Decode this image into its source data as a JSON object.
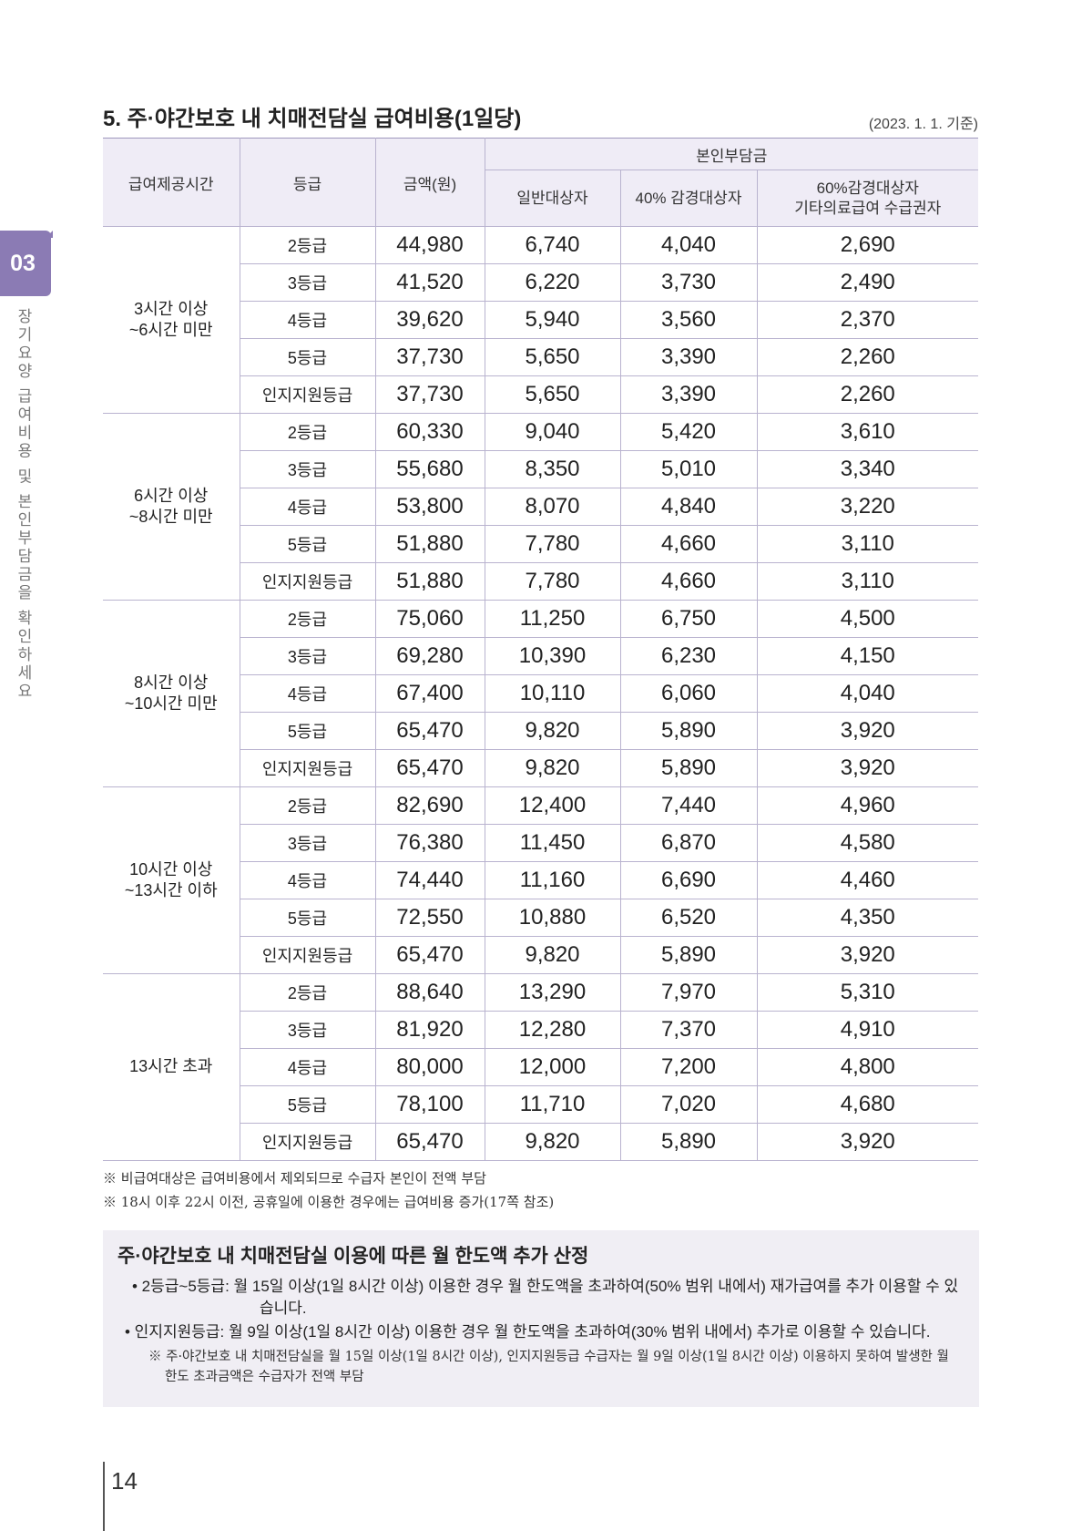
{
  "side": {
    "chapter": "03",
    "title": "장기요양 급여비용 및 본인부담금을 확인하세요"
  },
  "section_title": "5. 주·야간보호 내 치매전담실 급여비용(1일당)",
  "base_date": "(2023. 1. 1. 기준)",
  "table": {
    "headers": {
      "time": "급여제공시간",
      "grade": "등급",
      "amount": "금액(원)",
      "copay": "본인부담금",
      "general": "일반대상자",
      "reduced40": "40% 감경대상자",
      "reduced60_line1": "60%감경대상자",
      "reduced60_line2": "기타의료급여 수급권자"
    },
    "groups": [
      {
        "time_line1": "3시간 이상",
        "time_line2": "~6시간 미만",
        "rows": [
          {
            "grade": "2등급",
            "amount": "44,980",
            "general": "6,740",
            "r40": "4,040",
            "r60": "2,690"
          },
          {
            "grade": "3등급",
            "amount": "41,520",
            "general": "6,220",
            "r40": "3,730",
            "r60": "2,490"
          },
          {
            "grade": "4등급",
            "amount": "39,620",
            "general": "5,940",
            "r40": "3,560",
            "r60": "2,370"
          },
          {
            "grade": "5등급",
            "amount": "37,730",
            "general": "5,650",
            "r40": "3,390",
            "r60": "2,260"
          },
          {
            "grade": "인지지원등급",
            "amount": "37,730",
            "general": "5,650",
            "r40": "3,390",
            "r60": "2,260"
          }
        ]
      },
      {
        "time_line1": "6시간 이상",
        "time_line2": "~8시간 미만",
        "rows": [
          {
            "grade": "2등급",
            "amount": "60,330",
            "general": "9,040",
            "r40": "5,420",
            "r60": "3,610"
          },
          {
            "grade": "3등급",
            "amount": "55,680",
            "general": "8,350",
            "r40": "5,010",
            "r60": "3,340"
          },
          {
            "grade": "4등급",
            "amount": "53,800",
            "general": "8,070",
            "r40": "4,840",
            "r60": "3,220"
          },
          {
            "grade": "5등급",
            "amount": "51,880",
            "general": "7,780",
            "r40": "4,660",
            "r60": "3,110"
          },
          {
            "grade": "인지지원등급",
            "amount": "51,880",
            "general": "7,780",
            "r40": "4,660",
            "r60": "3,110"
          }
        ]
      },
      {
        "time_line1": "8시간 이상",
        "time_line2": "~10시간 미만",
        "rows": [
          {
            "grade": "2등급",
            "amount": "75,060",
            "general": "11,250",
            "r40": "6,750",
            "r60": "4,500"
          },
          {
            "grade": "3등급",
            "amount": "69,280",
            "general": "10,390",
            "r40": "6,230",
            "r60": "4,150"
          },
          {
            "grade": "4등급",
            "amount": "67,400",
            "general": "10,110",
            "r40": "6,060",
            "r60": "4,040"
          },
          {
            "grade": "5등급",
            "amount": "65,470",
            "general": "9,820",
            "r40": "5,890",
            "r60": "3,920"
          },
          {
            "grade": "인지지원등급",
            "amount": "65,470",
            "general": "9,820",
            "r40": "5,890",
            "r60": "3,920"
          }
        ]
      },
      {
        "time_line1": "10시간 이상",
        "time_line2": "~13시간 이하",
        "rows": [
          {
            "grade": "2등급",
            "amount": "82,690",
            "general": "12,400",
            "r40": "7,440",
            "r60": "4,960"
          },
          {
            "grade": "3등급",
            "amount": "76,380",
            "general": "11,450",
            "r40": "6,870",
            "r60": "4,580"
          },
          {
            "grade": "4등급",
            "amount": "74,440",
            "general": "11,160",
            "r40": "6,690",
            "r60": "4,460"
          },
          {
            "grade": "5등급",
            "amount": "72,550",
            "general": "10,880",
            "r40": "6,520",
            "r60": "4,350"
          },
          {
            "grade": "인지지원등급",
            "amount": "65,470",
            "general": "9,820",
            "r40": "5,890",
            "r60": "3,920"
          }
        ]
      },
      {
        "time_line1": "13시간 초과",
        "time_line2": "",
        "rows": [
          {
            "grade": "2등급",
            "amount": "88,640",
            "general": "13,290",
            "r40": "7,970",
            "r60": "5,310"
          },
          {
            "grade": "3등급",
            "amount": "81,920",
            "general": "12,280",
            "r40": "7,370",
            "r60": "4,910"
          },
          {
            "grade": "4등급",
            "amount": "80,000",
            "general": "12,000",
            "r40": "7,200",
            "r60": "4,800"
          },
          {
            "grade": "5등급",
            "amount": "78,100",
            "general": "11,710",
            "r40": "7,020",
            "r60": "4,680"
          },
          {
            "grade": "인지지원등급",
            "amount": "65,470",
            "general": "9,820",
            "r40": "5,890",
            "r60": "3,920"
          }
        ]
      }
    ]
  },
  "notes": [
    "※ 비급여대상은 급여비용에서 제외되므로 수급자 본인이 전액 부담",
    "※ 18시 이후 22시 이전, 공휴일에 이용한 경우에는 급여비용 증가(17쪽 참조)"
  ],
  "info": {
    "title": "주·야간보호 내 치매전담실 이용에 따른 월 한도액 추가 산정",
    "bullet1": "• 2등급~5등급: 월 15일 이상(1일 8시간 이상) 이용한 경우 월 한도액을 초과하여(50% 범위 내에서) 재가급여를 추가 이용할 수 있습니다.",
    "bullet2": "• 인지지원등급: 월 9일 이상(1일 8시간 이상) 이용한 경우 월 한도액을 초과하여(30% 범위 내에서) 추가로 이용할 수 있습니다.",
    "sub": "※ 주·야간보호 내 치매전담실을 월 15일 이상(1일 8시간 이상), 인지지원등급 수급자는 월 9일 이상(1일 8시간 이상) 이용하지 못하여 발생한 월 한도 초과금액은 수급자가 전액 부담"
  },
  "page_number": "14"
}
